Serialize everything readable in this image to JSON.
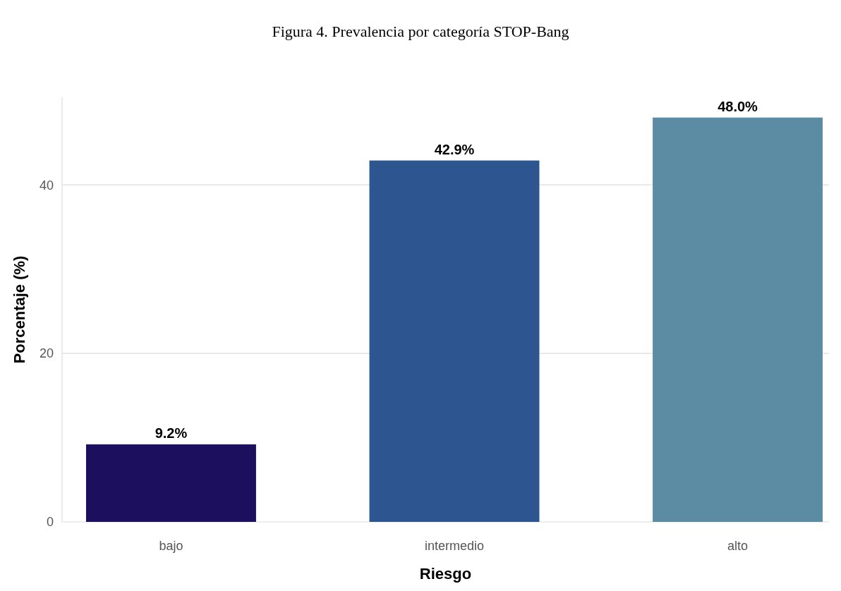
{
  "chart_data": {
    "type": "bar",
    "title": "Figura 4. Prevalencia por categoría STOP-Bang",
    "xlabel": "Riesgo",
    "ylabel": "Porcentaje (%)",
    "categories": [
      "bajo",
      "intermedio",
      "alto"
    ],
    "values": [
      9.2,
      42.9,
      48.0
    ],
    "colors": [
      "#1b0f5e",
      "#2d5590",
      "#5b8ca4"
    ],
    "value_labels": [
      "9.2%",
      "42.9%",
      "48.0%"
    ],
    "ylim": [
      0,
      50.4
    ],
    "yticks": [
      0,
      20,
      40
    ],
    "grid": "y"
  }
}
